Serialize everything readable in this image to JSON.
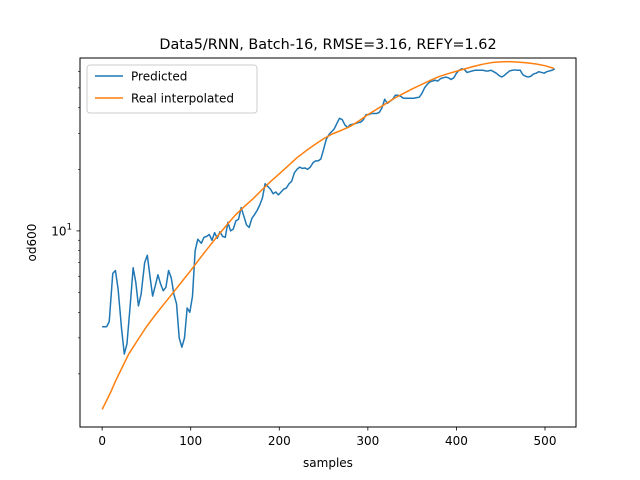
{
  "chart_data": {
    "type": "line",
    "title": "Data5/RNN, Batch-16, RMSE=3.16, REFY=1.62",
    "xlabel": "samples",
    "ylabel": "od600",
    "xlim": [
      -25,
      535
    ],
    "ylim": [
      1.1,
      70
    ],
    "yscale": "log",
    "xticks": [
      0,
      100,
      200,
      300,
      400,
      500
    ],
    "xtick_labels": [
      "0",
      "100",
      "200",
      "300",
      "400",
      "500"
    ],
    "yticks": [
      10
    ],
    "ytick_labels": [
      "10^1"
    ],
    "ytick_base": "10",
    "ytick_exp": "1",
    "grid": false,
    "legend_position": "upper-left",
    "series": [
      {
        "name": "Predicted",
        "color": "#1f77b4",
        "points": [
          [
            0,
            3.4
          ],
          [
            5,
            3.4
          ],
          [
            8,
            3.6
          ],
          [
            12,
            6.2
          ],
          [
            15,
            6.4
          ],
          [
            18,
            5.2
          ],
          [
            22,
            3.3
          ],
          [
            25,
            2.5
          ],
          [
            28,
            2.8
          ],
          [
            32,
            4.5
          ],
          [
            35,
            6.6
          ],
          [
            38,
            5.6
          ],
          [
            41,
            4.3
          ],
          [
            44,
            4.9
          ],
          [
            48,
            7.0
          ],
          [
            51,
            7.6
          ],
          [
            54,
            6.0
          ],
          [
            57,
            4.8
          ],
          [
            60,
            5.4
          ],
          [
            63,
            6.1
          ],
          [
            66,
            5.5
          ],
          [
            69,
            5.1
          ],
          [
            72,
            5.3
          ],
          [
            75,
            6.4
          ],
          [
            78,
            5.9
          ],
          [
            81,
            4.9
          ],
          [
            84,
            4.4
          ],
          [
            87,
            3.0
          ],
          [
            90,
            2.7
          ],
          [
            93,
            3.0
          ],
          [
            96,
            4.2
          ],
          [
            99,
            4.0
          ],
          [
            102,
            4.8
          ],
          [
            105,
            8.0
          ],
          [
            108,
            9.1
          ],
          [
            112,
            8.7
          ],
          [
            115,
            9.3
          ],
          [
            118,
            9.4
          ],
          [
            121,
            9.6
          ],
          [
            124,
            9.0
          ],
          [
            127,
            9.8
          ],
          [
            130,
            9.2
          ],
          [
            133,
            9.9
          ],
          [
            136,
            9.4
          ],
          [
            139,
            9.3
          ],
          [
            142,
            11.0
          ],
          [
            145,
            10.0
          ],
          [
            148,
            10.2
          ],
          [
            151,
            11.2
          ],
          [
            154,
            11.4
          ],
          [
            157,
            13.0
          ],
          [
            160,
            11.8
          ],
          [
            163,
            10.7
          ],
          [
            166,
            10.4
          ],
          [
            169,
            11.5
          ],
          [
            172,
            12.0
          ],
          [
            175,
            12.6
          ],
          [
            178,
            13.4
          ],
          [
            181,
            14.5
          ],
          [
            184,
            17.0
          ],
          [
            187,
            16.5
          ],
          [
            190,
            16.0
          ],
          [
            193,
            15.2
          ],
          [
            196,
            15.5
          ],
          [
            199,
            15.0
          ],
          [
            202,
            15.5
          ],
          [
            205,
            16.0
          ],
          [
            208,
            16.2
          ],
          [
            211,
            17.0
          ],
          [
            214,
            17.5
          ],
          [
            217,
            19.2
          ],
          [
            220,
            20.0
          ],
          [
            223,
            20.5
          ],
          [
            226,
            20.2
          ],
          [
            229,
            20.3
          ],
          [
            232,
            20.0
          ],
          [
            235,
            20.5
          ],
          [
            238,
            21.5
          ],
          [
            241,
            22.0
          ],
          [
            244,
            22.0
          ],
          [
            247,
            22.5
          ],
          [
            250,
            25.0
          ],
          [
            253,
            28.0
          ],
          [
            256,
            29.5
          ],
          [
            259,
            30.5
          ],
          [
            262,
            31.5
          ],
          [
            265,
            33.5
          ],
          [
            268,
            35.5
          ],
          [
            271,
            35.0
          ],
          [
            274,
            33.0
          ],
          [
            277,
            32.0
          ],
          [
            280,
            33.0
          ],
          [
            283,
            33.2
          ],
          [
            286,
            33.5
          ],
          [
            289,
            33.8
          ],
          [
            292,
            34.0
          ],
          [
            295,
            35.0
          ],
          [
            298,
            37.0
          ],
          [
            301,
            37.0
          ],
          [
            304,
            37.5
          ],
          [
            307,
            37.5
          ],
          [
            310,
            37.5
          ],
          [
            313,
            38.0
          ],
          [
            316,
            40.0
          ],
          [
            319,
            44.0
          ],
          [
            322,
            42.0
          ],
          [
            325,
            43.0
          ],
          [
            328,
            44.0
          ],
          [
            331,
            46.0
          ],
          [
            334,
            46.0
          ],
          [
            337,
            45.5
          ],
          [
            340,
            44.5
          ],
          [
            343,
            44.5
          ],
          [
            346,
            44.5
          ],
          [
            349,
            44.5
          ],
          [
            352,
            44.5
          ],
          [
            355,
            44.8
          ],
          [
            358,
            45.0
          ],
          [
            361,
            47.0
          ],
          [
            364,
            50.0
          ],
          [
            367,
            52.0
          ],
          [
            370,
            53.5
          ],
          [
            373,
            54.0
          ],
          [
            376,
            54.5
          ],
          [
            379,
            54.0
          ],
          [
            382,
            55.5
          ],
          [
            385,
            56.0
          ],
          [
            388,
            56.5
          ],
          [
            391,
            56.0
          ],
          [
            394,
            55.0
          ],
          [
            397,
            56.0
          ],
          [
            400,
            59.0
          ],
          [
            403,
            61.0
          ],
          [
            406,
            62.0
          ],
          [
            409,
            61.5
          ],
          [
            412,
            59.5
          ],
          [
            415,
            60.0
          ],
          [
            418,
            60.5
          ],
          [
            421,
            61.0
          ],
          [
            424,
            61.0
          ],
          [
            427,
            61.0
          ],
          [
            430,
            61.0
          ],
          [
            433,
            60.5
          ],
          [
            436,
            60.5
          ],
          [
            439,
            61.0
          ],
          [
            442,
            60.0
          ],
          [
            445,
            59.0
          ],
          [
            448,
            57.5
          ],
          [
            451,
            56.5
          ],
          [
            454,
            57.5
          ],
          [
            457,
            59.0
          ],
          [
            460,
            60.5
          ],
          [
            463,
            61.0
          ],
          [
            466,
            61.2
          ],
          [
            469,
            61.0
          ],
          [
            472,
            61.0
          ],
          [
            475,
            58.0
          ],
          [
            478,
            57.0
          ],
          [
            481,
            56.5
          ],
          [
            484,
            57.0
          ],
          [
            487,
            58.5
          ],
          [
            490,
            59.0
          ],
          [
            493,
            60.0
          ],
          [
            496,
            59.5
          ],
          [
            499,
            59.0
          ],
          [
            502,
            60.0
          ],
          [
            505,
            60.5
          ],
          [
            508,
            61.0
          ],
          [
            511,
            62.0
          ]
        ]
      },
      {
        "name": "Real interpolated",
        "color": "#ff7f0e",
        "points": [
          [
            0,
            1.34
          ],
          [
            5,
            1.48
          ],
          [
            10,
            1.64
          ],
          [
            15,
            1.84
          ],
          [
            20,
            2.04
          ],
          [
            25,
            2.26
          ],
          [
            30,
            2.5
          ],
          [
            40,
            2.92
          ],
          [
            50,
            3.4
          ],
          [
            60,
            3.88
          ],
          [
            70,
            4.4
          ],
          [
            80,
            4.98
          ],
          [
            90,
            5.65
          ],
          [
            100,
            6.4
          ],
          [
            110,
            7.3
          ],
          [
            120,
            8.3
          ],
          [
            130,
            9.4
          ],
          [
            140,
            10.6
          ],
          [
            150,
            11.9
          ],
          [
            160,
            13.1
          ],
          [
            170,
            14.3
          ],
          [
            180,
            15.8
          ],
          [
            190,
            17.4
          ],
          [
            200,
            19.0
          ],
          [
            210,
            20.8
          ],
          [
            220,
            22.8
          ],
          [
            230,
            24.6
          ],
          [
            240,
            26.4
          ],
          [
            250,
            28.2
          ],
          [
            260,
            29.8
          ],
          [
            270,
            31.0
          ],
          [
            280,
            32.4
          ],
          [
            290,
            34.5
          ],
          [
            300,
            37.0
          ],
          [
            310,
            39.3
          ],
          [
            320,
            41.8
          ],
          [
            330,
            44.5
          ],
          [
            340,
            46.9
          ],
          [
            350,
            49.4
          ],
          [
            360,
            51.8
          ],
          [
            370,
            54.3
          ],
          [
            380,
            56.7
          ],
          [
            390,
            58.6
          ],
          [
            400,
            60.3
          ],
          [
            410,
            62.0
          ],
          [
            420,
            63.8
          ],
          [
            430,
            65.3
          ],
          [
            440,
            66.5
          ],
          [
            450,
            67.0
          ],
          [
            460,
            67.2
          ],
          [
            470,
            66.8
          ],
          [
            480,
            66.3
          ],
          [
            490,
            65.4
          ],
          [
            500,
            64.2
          ],
          [
            510,
            62.3
          ]
        ]
      }
    ]
  }
}
